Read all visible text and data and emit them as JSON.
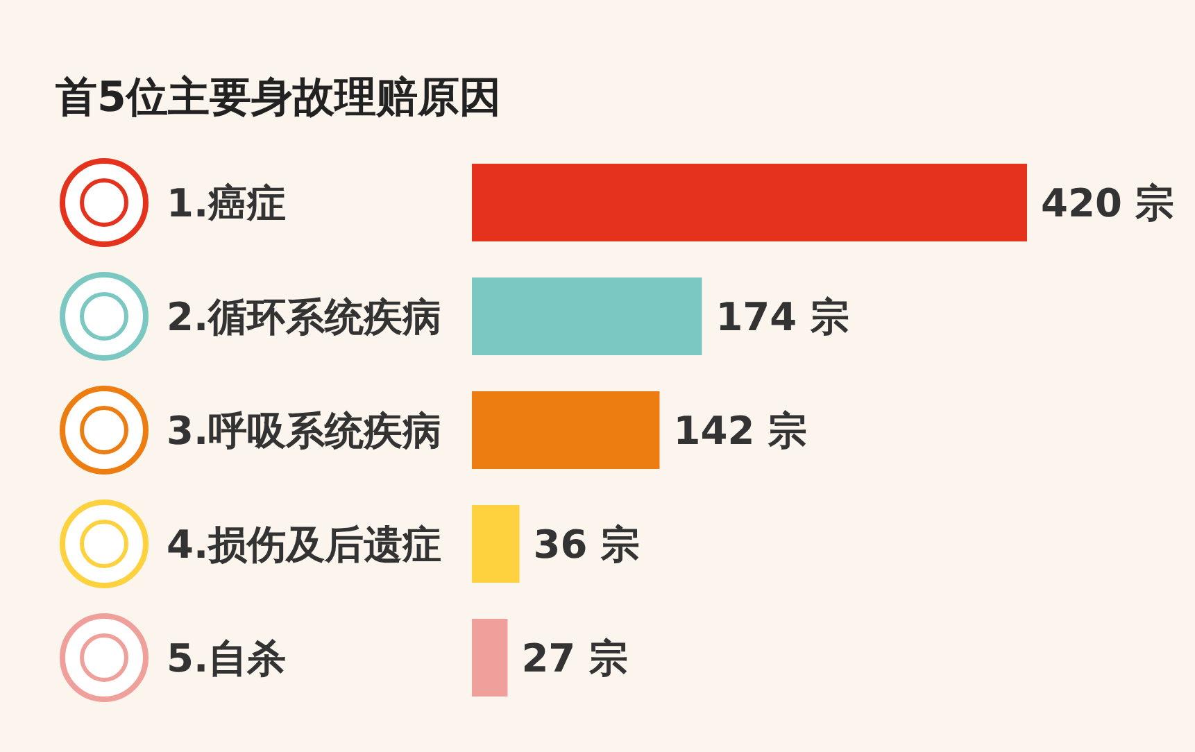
{
  "chart_data": {
    "type": "bar",
    "orientation": "horizontal",
    "title": "首5位主要身故理赔原因",
    "categories": [
      "1.癌症",
      "2.循环系统疾病",
      "3.呼吸系统疾病",
      "4.损伤及后遗症",
      "5.自杀"
    ],
    "values": [
      420,
      174,
      142,
      36,
      27
    ],
    "value_labels": [
      "420 宗",
      "174 宗",
      "142 宗",
      "36 宗",
      "27 宗"
    ],
    "colors": [
      "#e5321d",
      "#7bc8c3",
      "#ee7d11",
      "#fdd23e",
      "#efa09a"
    ]
  }
}
